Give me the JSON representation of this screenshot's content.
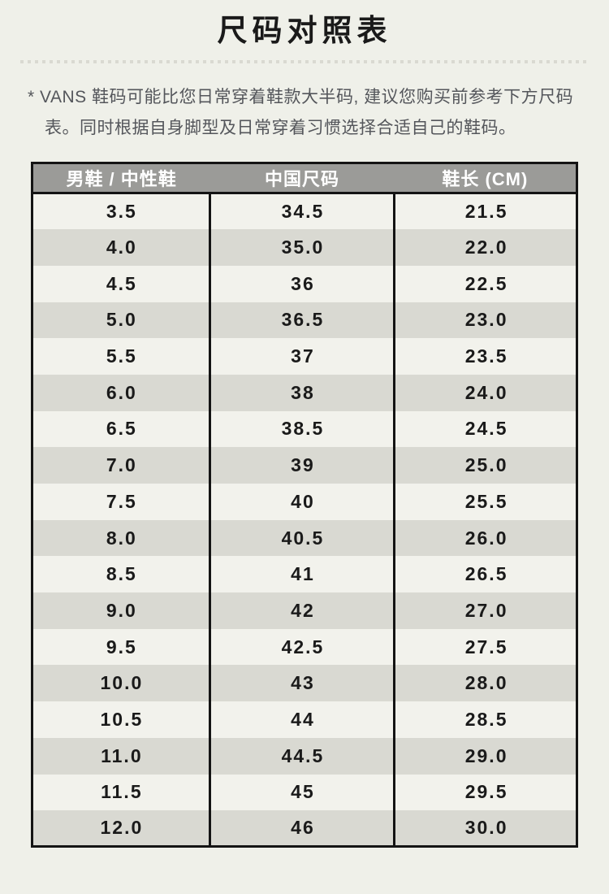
{
  "page": {
    "title": "尺码对照表",
    "note": "* VANS 鞋码可能比您日常穿着鞋款大半码, 建议您购买前参考下方尺码表。同时根据自身脚型及日常穿着习惯选择合适自己的鞋码。"
  },
  "table": {
    "columns": [
      "男鞋 / 中性鞋",
      "中国尺码",
      "鞋长 (CM)"
    ],
    "rows": [
      [
        "3.5",
        "34.5",
        "21.5"
      ],
      [
        "4.0",
        "35.0",
        "22.0"
      ],
      [
        "4.5",
        "36",
        "22.5"
      ],
      [
        "5.0",
        "36.5",
        "23.0"
      ],
      [
        "5.5",
        "37",
        "23.5"
      ],
      [
        "6.0",
        "38",
        "24.0"
      ],
      [
        "6.5",
        "38.5",
        "24.5"
      ],
      [
        "7.0",
        "39",
        "25.0"
      ],
      [
        "7.5",
        "40",
        "25.5"
      ],
      [
        "8.0",
        "40.5",
        "26.0"
      ],
      [
        "8.5",
        "41",
        "26.5"
      ],
      [
        "9.0",
        "42",
        "27.0"
      ],
      [
        "9.5",
        "42.5",
        "27.5"
      ],
      [
        "10.0",
        "43",
        "28.0"
      ],
      [
        "10.5",
        "44",
        "28.5"
      ],
      [
        "11.0",
        "44.5",
        "29.0"
      ],
      [
        "11.5",
        "45",
        "29.5"
      ],
      [
        "12.0",
        "46",
        "30.0"
      ]
    ]
  },
  "colors": {
    "page_bg": "#eff0e9",
    "header_bg": "#9b9b98",
    "row_light": "#f2f2ec",
    "row_dark": "#d9d9d2",
    "border": "#141414",
    "text": "#1a1a1a",
    "note_text": "#54565b",
    "dot": "#d9d9d1"
  }
}
